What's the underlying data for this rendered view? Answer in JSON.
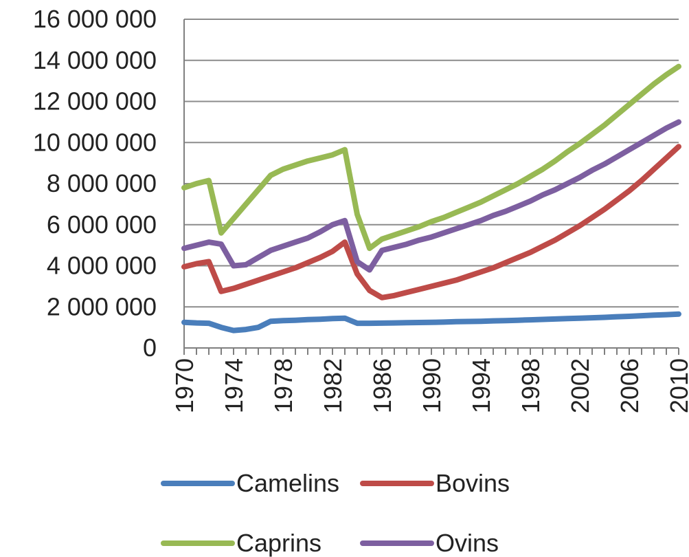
{
  "chart_data": {
    "type": "line",
    "title": "",
    "xlabel": "",
    "ylabel": "",
    "xlim": [
      1970,
      2010
    ],
    "ylim": [
      0,
      16000000
    ],
    "y_ticks": [
      {
        "value": 0,
        "label": "0"
      },
      {
        "value": 2000000,
        "label": "2 000 000"
      },
      {
        "value": 4000000,
        "label": "4 000 000"
      },
      {
        "value": 6000000,
        "label": "6 000 000"
      },
      {
        "value": 8000000,
        "label": "8 000 000"
      },
      {
        "value": 10000000,
        "label": "10 000 000"
      },
      {
        "value": 12000000,
        "label": "12 000 000"
      },
      {
        "value": 14000000,
        "label": "14 000 000"
      },
      {
        "value": 16000000,
        "label": "16 000 000"
      }
    ],
    "x_tick_labels": [
      "1970",
      "1974",
      "1978",
      "1982",
      "1986",
      "1990",
      "1994",
      "1998",
      "2002",
      "2006",
      "2010"
    ],
    "grid": true,
    "legend_position": "bottom",
    "x": [
      1970,
      1971,
      1972,
      1973,
      1974,
      1975,
      1976,
      1977,
      1978,
      1979,
      1980,
      1981,
      1982,
      1983,
      1984,
      1985,
      1986,
      1987,
      1988,
      1989,
      1990,
      1991,
      1992,
      1993,
      1994,
      1995,
      1996,
      1997,
      1998,
      1999,
      2000,
      2001,
      2002,
      2003,
      2004,
      2005,
      2006,
      2007,
      2008,
      2009,
      2010
    ],
    "series": [
      {
        "name": "Camelins",
        "color": "#4a7ebb",
        "values": [
          1250000,
          1220000,
          1200000,
          1000000,
          850000,
          900000,
          1000000,
          1300000,
          1330000,
          1350000,
          1380000,
          1400000,
          1430000,
          1450000,
          1200000,
          1200000,
          1210000,
          1220000,
          1230000,
          1240000,
          1250000,
          1260000,
          1280000,
          1290000,
          1300000,
          1320000,
          1330000,
          1350000,
          1370000,
          1390000,
          1410000,
          1430000,
          1450000,
          1470000,
          1490000,
          1520000,
          1540000,
          1570000,
          1600000,
          1620000,
          1650000
        ]
      },
      {
        "name": "Bovins",
        "color": "#be4b48",
        "values": [
          3950000,
          4100000,
          4200000,
          2750000,
          2900000,
          3100000,
          3300000,
          3500000,
          3700000,
          3900000,
          4150000,
          4400000,
          4700000,
          5150000,
          3600000,
          2800000,
          2450000,
          2550000,
          2700000,
          2850000,
          3000000,
          3150000,
          3300000,
          3500000,
          3700000,
          3900000,
          4150000,
          4400000,
          4650000,
          4950000,
          5250000,
          5600000,
          5950000,
          6350000,
          6750000,
          7200000,
          7650000,
          8150000,
          8700000,
          9250000,
          9800000
        ]
      },
      {
        "name": "Caprins",
        "color": "#98b954",
        "values": [
          7800000,
          8000000,
          8150000,
          5600000,
          6300000,
          7000000,
          7700000,
          8400000,
          8700000,
          8900000,
          9100000,
          9250000,
          9400000,
          9650000,
          6500000,
          4850000,
          5300000,
          5500000,
          5700000,
          5900000,
          6150000,
          6350000,
          6600000,
          6850000,
          7100000,
          7400000,
          7700000,
          8000000,
          8350000,
          8700000,
          9100000,
          9550000,
          9950000,
          10400000,
          10850000,
          11350000,
          11850000,
          12350000,
          12850000,
          13300000,
          13700000
        ]
      },
      {
        "name": "Ovins",
        "color": "#7d5fa0",
        "values": [
          4850000,
          5000000,
          5150000,
          5050000,
          4000000,
          4050000,
          4400000,
          4750000,
          4950000,
          5150000,
          5350000,
          5650000,
          6000000,
          6200000,
          4200000,
          3800000,
          4750000,
          4900000,
          5050000,
          5250000,
          5400000,
          5600000,
          5800000,
          6000000,
          6200000,
          6450000,
          6650000,
          6900000,
          7150000,
          7450000,
          7700000,
          8000000,
          8300000,
          8650000,
          8950000,
          9300000,
          9650000,
          10000000,
          10350000,
          10700000,
          11000000
        ]
      }
    ]
  }
}
